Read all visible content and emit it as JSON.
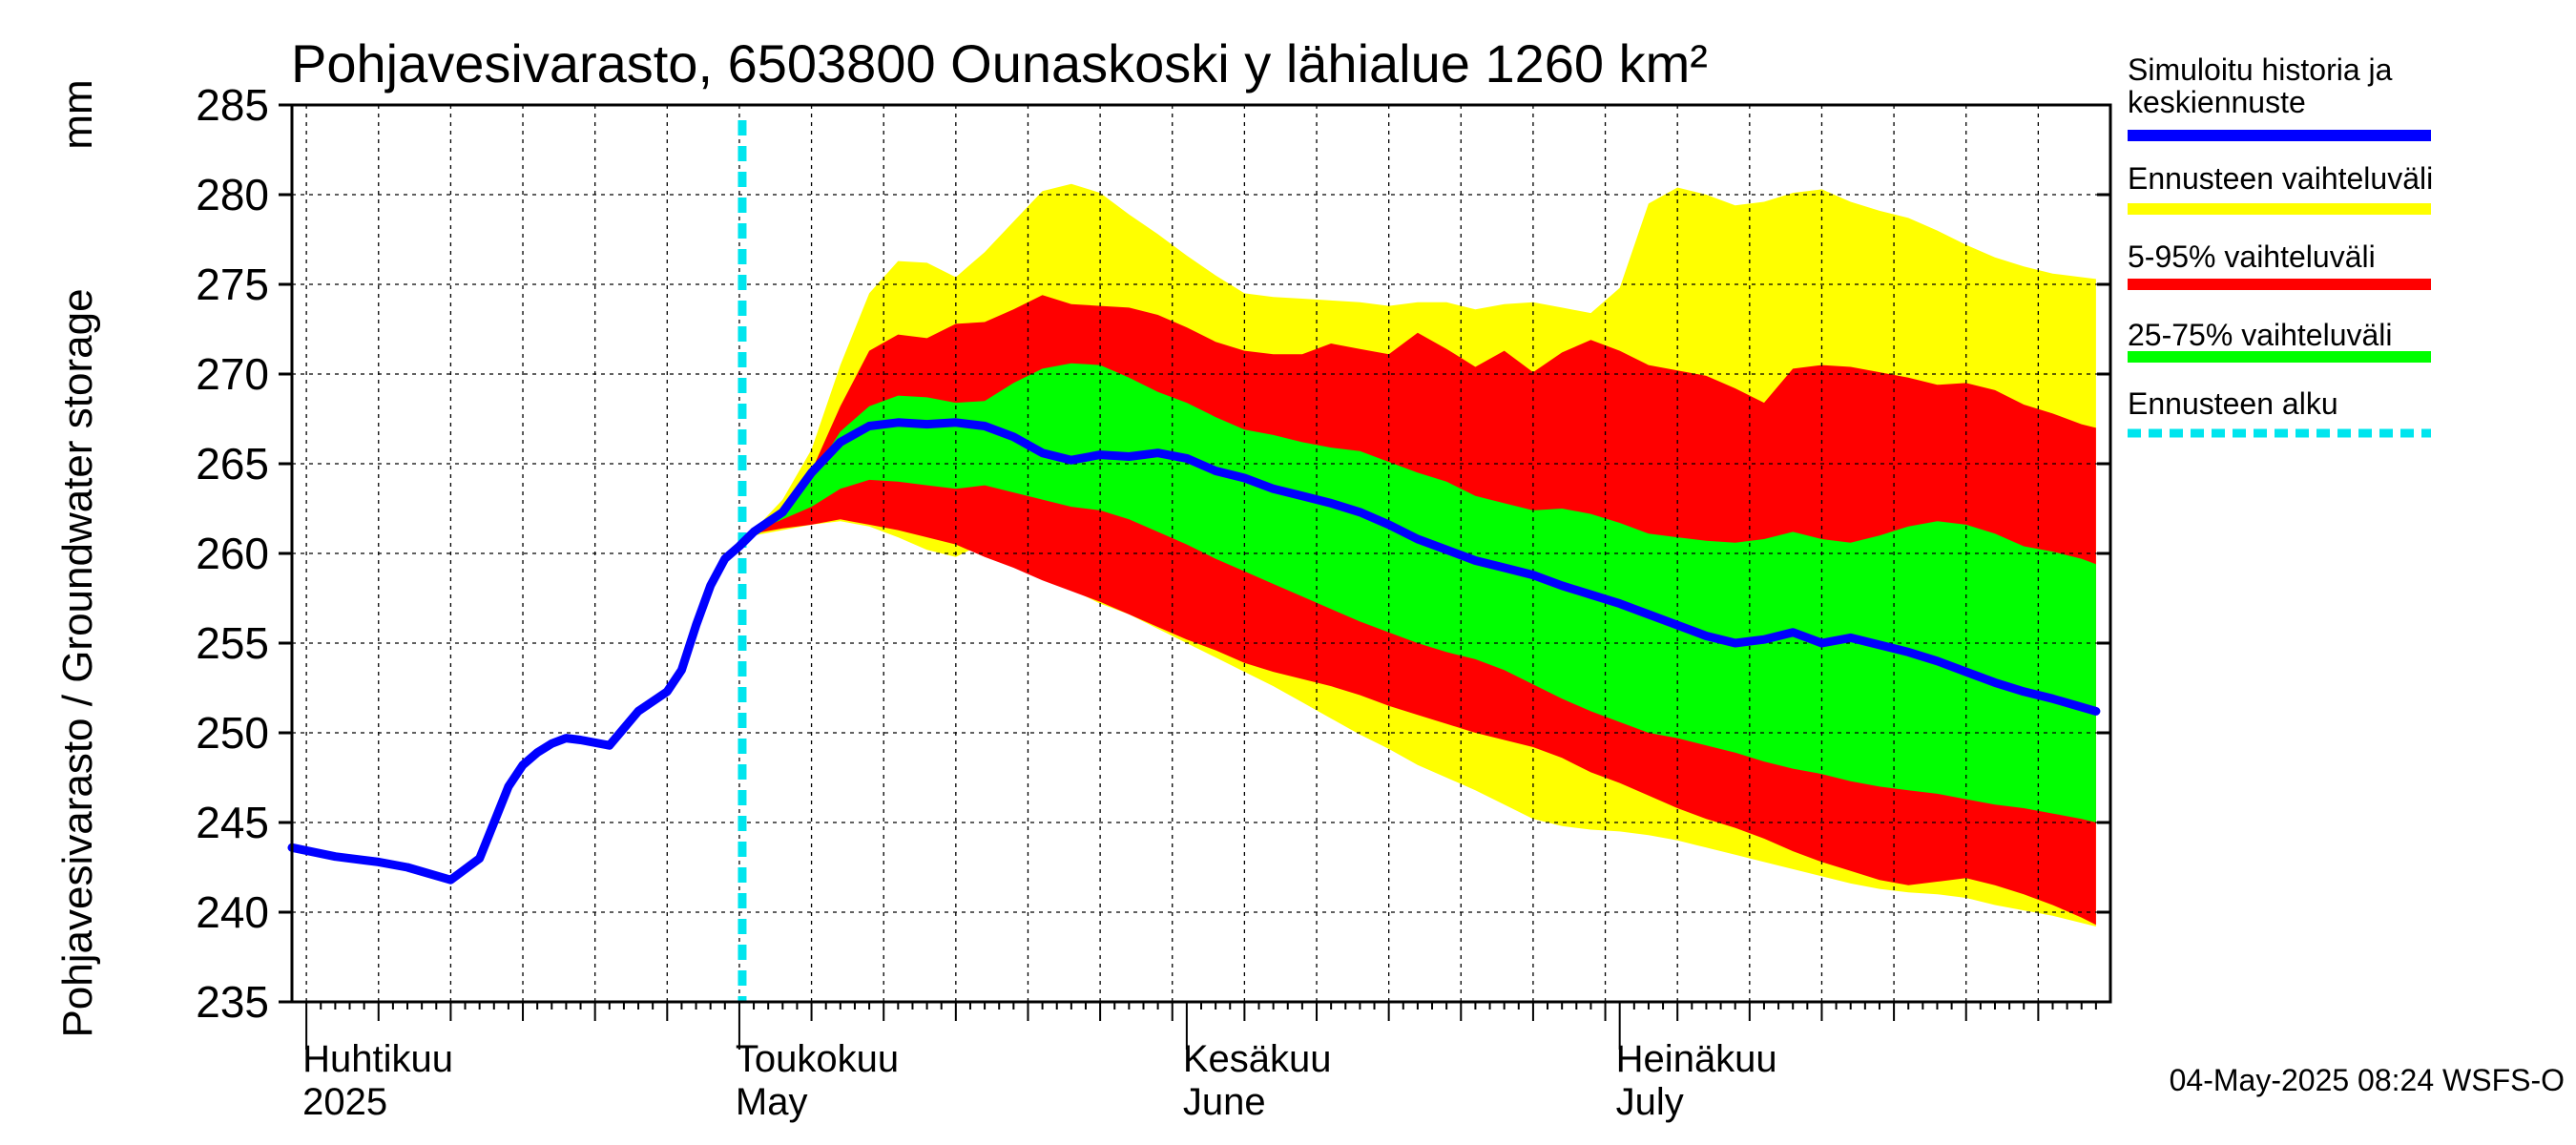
{
  "chart_data": {
    "type": "area",
    "title": "Pohjavesivarasto, 6503800 Ounaskoski y lähialue 1260 km²",
    "ylabel": "Pohjavesivarasto / Groundwater storage",
    "yunit": "mm",
    "ylim": [
      235,
      285
    ],
    "yticks": [
      235,
      240,
      245,
      250,
      255,
      260,
      265,
      270,
      275,
      280,
      285
    ],
    "xlim": [
      -1,
      125
    ],
    "x_unit": "days since 1 Apr 2025",
    "forecast_start_day": 30.2,
    "months": [
      {
        "day": 0,
        "fi": "Huhtikuu",
        "en": "2025"
      },
      {
        "day": 30,
        "fi": "Toukokuu",
        "en": "May"
      },
      {
        "day": 61,
        "fi": "Kesäkuu",
        "en": "June"
      },
      {
        "day": 91,
        "fi": "Heinäkuu",
        "en": "July"
      }
    ],
    "series": [
      {
        "name": "Simuloitu historia ja keskiennuste",
        "color": "#0000ff",
        "x": [
          -1,
          2,
          5,
          7,
          10,
          12,
          14,
          15,
          16,
          17,
          18,
          19,
          21,
          23,
          25,
          26,
          27,
          28,
          29,
          30,
          31,
          33,
          35,
          37,
          39,
          41,
          43,
          45,
          47,
          49,
          51,
          53,
          55,
          57,
          59,
          61,
          63,
          65,
          67,
          69,
          71,
          73,
          75,
          77,
          79,
          81,
          83,
          85,
          87,
          89,
          91,
          93,
          95,
          97,
          99,
          101,
          103,
          105,
          107,
          109,
          111,
          113,
          115,
          117,
          119,
          121,
          124
        ],
        "values": [
          243.6,
          243.1,
          242.8,
          242.5,
          241.8,
          243.0,
          247.0,
          248.2,
          248.9,
          249.4,
          249.7,
          249.6,
          249.3,
          251.2,
          252.3,
          253.5,
          256.0,
          258.2,
          259.7,
          260.4,
          261.2,
          262.3,
          264.5,
          266.2,
          267.1,
          267.3,
          267.2,
          267.3,
          267.1,
          266.5,
          265.6,
          265.2,
          265.5,
          265.4,
          265.6,
          265.3,
          264.6,
          264.2,
          263.6,
          263.2,
          262.8,
          262.3,
          261.6,
          260.8,
          260.2,
          259.6,
          259.2,
          258.8,
          258.2,
          257.7,
          257.2,
          256.6,
          256.0,
          255.4,
          255.0,
          255.2,
          255.6,
          255.0,
          255.3,
          254.9,
          254.5,
          254.0,
          253.4,
          252.8,
          252.3,
          251.9,
          251.2
        ]
      },
      {
        "name": "Ennusteen vaihteluväli",
        "color": "#ffff00",
        "x": [
          30,
          31,
          33,
          35,
          37,
          39,
          41,
          43,
          45,
          47,
          49,
          51,
          53,
          55,
          57,
          59,
          61,
          63,
          65,
          67,
          69,
          71,
          73,
          75,
          77,
          79,
          81,
          83,
          85,
          87,
          89,
          91,
          93,
          95,
          97,
          99,
          101,
          103,
          105,
          107,
          109,
          111,
          113,
          115,
          117,
          119,
          121,
          123,
          124
        ],
        "upper": [
          260.4,
          261.3,
          263.0,
          265.8,
          270.5,
          274.5,
          276.3,
          276.2,
          275.4,
          276.8,
          278.5,
          280.2,
          280.6,
          280.1,
          278.9,
          277.8,
          276.6,
          275.5,
          274.5,
          274.3,
          274.2,
          274.1,
          274.0,
          273.8,
          274.0,
          274.0,
          273.6,
          273.9,
          274.0,
          273.7,
          273.4,
          274.8,
          279.5,
          280.4,
          280.0,
          279.4,
          279.6,
          280.1,
          280.3,
          279.6,
          279.1,
          278.7,
          278.0,
          277.2,
          276.5,
          276.0,
          275.6,
          275.4,
          275.3
        ],
        "lower": [
          260.4,
          261.0,
          261.3,
          261.6,
          261.8,
          261.5,
          260.9,
          260.2,
          259.8,
          260.6,
          259.5,
          258.8,
          258.0,
          257.2,
          256.6,
          255.8,
          255.0,
          254.2,
          253.4,
          252.6,
          251.7,
          250.8,
          249.9,
          249.1,
          248.2,
          247.5,
          246.8,
          246.0,
          245.2,
          244.8,
          244.6,
          244.5,
          244.3,
          244.0,
          243.6,
          243.2,
          242.8,
          242.4,
          242.0,
          241.6,
          241.3,
          241.1,
          241.0,
          240.8,
          240.4,
          240.1,
          239.8,
          239.4,
          239.2
        ]
      },
      {
        "name": "5-95% vaihteluväli",
        "color": "#ff0000",
        "x": [
          30,
          31,
          33,
          35,
          37,
          39,
          41,
          43,
          45,
          47,
          49,
          51,
          53,
          55,
          57,
          59,
          61,
          63,
          65,
          67,
          69,
          71,
          73,
          75,
          77,
          79,
          81,
          83,
          85,
          87,
          89,
          91,
          93,
          95,
          97,
          99,
          101,
          103,
          105,
          107,
          109,
          111,
          113,
          115,
          117,
          119,
          121,
          123,
          124
        ],
        "upper": [
          260.4,
          261.2,
          262.5,
          264.6,
          268.2,
          271.3,
          272.2,
          272.0,
          272.8,
          272.9,
          273.6,
          274.4,
          273.9,
          273.8,
          273.7,
          273.3,
          272.6,
          271.8,
          271.3,
          271.1,
          271.1,
          271.7,
          271.4,
          271.1,
          272.3,
          271.4,
          270.4,
          271.3,
          270.1,
          271.2,
          271.9,
          271.3,
          270.5,
          270.2,
          269.9,
          269.2,
          268.4,
          270.3,
          270.5,
          270.4,
          270.1,
          269.8,
          269.4,
          269.5,
          269.1,
          268.3,
          267.8,
          267.2,
          267.0
        ],
        "lower": [
          260.4,
          261.1,
          261.4,
          261.6,
          261.9,
          261.6,
          261.3,
          260.9,
          260.5,
          259.8,
          259.2,
          258.5,
          257.9,
          257.3,
          256.6,
          255.9,
          255.2,
          254.6,
          253.9,
          253.4,
          253.0,
          252.6,
          252.1,
          251.5,
          251.0,
          250.5,
          250.0,
          249.6,
          249.2,
          248.6,
          247.8,
          247.2,
          246.5,
          245.8,
          245.2,
          244.7,
          244.1,
          243.4,
          242.8,
          242.3,
          241.8,
          241.5,
          241.7,
          241.9,
          241.5,
          241.0,
          240.4,
          239.7,
          239.3
        ]
      },
      {
        "name": "25-75% vaihteluväli",
        "color": "#00ff00",
        "x": [
          30,
          31,
          33,
          35,
          37,
          39,
          41,
          43,
          45,
          47,
          49,
          51,
          53,
          55,
          57,
          59,
          61,
          63,
          65,
          67,
          69,
          71,
          73,
          75,
          77,
          79,
          81,
          83,
          85,
          87,
          89,
          91,
          93,
          95,
          97,
          99,
          101,
          103,
          105,
          107,
          109,
          111,
          113,
          115,
          117,
          119,
          121,
          123,
          124
        ],
        "upper": [
          260.4,
          261.2,
          262.4,
          264.3,
          266.8,
          268.2,
          268.8,
          268.7,
          268.4,
          268.5,
          269.5,
          270.3,
          270.6,
          270.5,
          269.8,
          269.0,
          268.4,
          267.6,
          266.9,
          266.6,
          266.2,
          265.9,
          265.7,
          265.1,
          264.5,
          264.0,
          263.2,
          262.8,
          262.4,
          262.5,
          262.2,
          261.7,
          261.1,
          260.9,
          260.7,
          260.6,
          260.8,
          261.2,
          260.8,
          260.6,
          261.0,
          261.5,
          261.8,
          261.6,
          261.1,
          260.4,
          260.1,
          259.7,
          259.4
        ],
        "lower": [
          260.4,
          261.2,
          261.9,
          262.6,
          263.6,
          264.1,
          264.0,
          263.8,
          263.6,
          263.8,
          263.4,
          263.0,
          262.6,
          262.4,
          261.9,
          261.2,
          260.5,
          259.7,
          259.0,
          258.3,
          257.6,
          256.9,
          256.2,
          255.6,
          255.0,
          254.5,
          254.1,
          253.5,
          252.7,
          251.9,
          251.2,
          250.6,
          250.0,
          249.7,
          249.3,
          248.9,
          248.4,
          248.0,
          247.7,
          247.3,
          247.0,
          246.8,
          246.6,
          246.3,
          246.0,
          245.8,
          245.5,
          245.2,
          245.0
        ]
      }
    ],
    "legend": [
      {
        "label": "Simuloitu historia ja",
        "label2": "keskiennuste",
        "color": "#0000ff",
        "style": "solid"
      },
      {
        "label": "Ennusteen vaihteluväli",
        "color": "#ffff00",
        "style": "solid"
      },
      {
        "label": "5-95% vaihteluväli",
        "color": "#ff0000",
        "style": "solid"
      },
      {
        "label": "25-75% vaihteluväli",
        "color": "#00ff00",
        "style": "solid"
      },
      {
        "label": "Ennusteen alku",
        "color": "#00e5ee",
        "style": "dashed"
      }
    ],
    "legend_position": "right",
    "grid": true
  },
  "timestamp": "04-May-2025 08:24 WSFS-O"
}
